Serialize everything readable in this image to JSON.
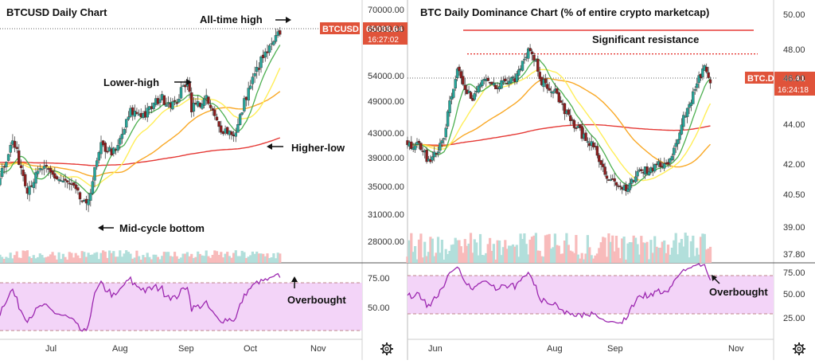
{
  "colors": {
    "up": "#26a69a",
    "down": "#8d1c1c",
    "ma_fast": "#4caf50",
    "ma_mid": "#ffee58",
    "ma_slow": "#f9a825",
    "ma_long": "#e53935",
    "rsi_line": "#9c27b0",
    "rsi_band": "#f3d4f8",
    "resistance": "#e53935",
    "badge": "#e0533a",
    "vol_up": "#b2dfdb",
    "vol_down": "#f8bbbb"
  },
  "chart_data": [
    {
      "type": "candlestick",
      "title": "BTCUSD Daily Chart",
      "symbol_badge": "BTCUSD",
      "last_price_label": "65088.64",
      "countdown": "16:27:02",
      "x_ticks": [
        "Jul",
        "Aug",
        "Sep",
        "Oct",
        "Nov"
      ],
      "y_ticks": [
        "70000.00",
        "60000.00",
        "54000.00",
        "49000.00",
        "43000.00",
        "39000.00",
        "35000.00",
        "31000.00",
        "28000.00"
      ],
      "y_scale": "log",
      "ylim": [
        26000,
        71000
      ],
      "rsi_ticks": [
        "75.00",
        "50.00"
      ],
      "rsi_range": [
        30,
        70
      ],
      "annotations": [
        "All-time high",
        "Lower-high",
        "Higher-low",
        "Mid-cycle bottom",
        "Overbought"
      ],
      "close_path": [
        [
          "2021-06-01",
          36500
        ],
        [
          "2021-06-08",
          33500
        ],
        [
          "2021-06-15",
          40000
        ],
        [
          "2021-06-22",
          32500
        ],
        [
          "2021-06-29",
          35500
        ],
        [
          "2021-07-06",
          34000
        ],
        [
          "2021-07-13",
          32800
        ],
        [
          "2021-07-20",
          29800
        ],
        [
          "2021-07-27",
          39000
        ],
        [
          "2021-08-03",
          38000
        ],
        [
          "2021-08-10",
          45500
        ],
        [
          "2021-08-17",
          45000
        ],
        [
          "2021-08-24",
          48500
        ],
        [
          "2021-08-31",
          47000
        ],
        [
          "2021-09-06",
          52500
        ],
        [
          "2021-09-08",
          46500
        ],
        [
          "2021-09-15",
          48000
        ],
        [
          "2021-09-21",
          42500
        ],
        [
          "2021-09-29",
          41300
        ],
        [
          "2021-10-04",
          49000
        ],
        [
          "2021-10-11",
          57000
        ],
        [
          "2021-10-17",
          61500
        ],
        [
          "2021-10-20",
          65000
        ]
      ]
    },
    {
      "type": "candlestick",
      "title": "BTC Daily Dominance Chart (% of entire crypto marketcap)",
      "symbol_badge": "BTC.D",
      "last_price_label": "46.41",
      "countdown": "16:24:18",
      "x_ticks": [
        "Jun",
        "Aug",
        "Sep",
        "Nov"
      ],
      "y_ticks": [
        "50.00",
        "48.00",
        "46.00",
        "44.00",
        "42.00",
        "40.50",
        "39.00",
        "37.80"
      ],
      "ylim": [
        37.0,
        50.5
      ],
      "rsi_ticks": [
        "75.00",
        "50.00",
        "25.00"
      ],
      "rsi_range": [
        30,
        70
      ],
      "annotations": [
        "Significant resistance",
        "Overbought"
      ],
      "resistance_level": 48.1,
      "close_path": [
        [
          "2021-05-20",
          43.0
        ],
        [
          "2021-05-27",
          42.0
        ],
        [
          "2021-06-03",
          43.5
        ],
        [
          "2021-06-10",
          47.5
        ],
        [
          "2021-06-17",
          45.5
        ],
        [
          "2021-06-24",
          46.8
        ],
        [
          "2021-07-01",
          46.2
        ],
        [
          "2021-07-10",
          46.8
        ],
        [
          "2021-07-18",
          48.5
        ],
        [
          "2021-07-24",
          46.5
        ],
        [
          "2021-08-01",
          45.8
        ],
        [
          "2021-08-10",
          44.0
        ],
        [
          "2021-08-20",
          43.0
        ],
        [
          "2021-08-28",
          41.0
        ],
        [
          "2021-09-06",
          40.6
        ],
        [
          "2021-09-14",
          41.5
        ],
        [
          "2021-09-22",
          41.8
        ],
        [
          "2021-09-29",
          42.0
        ],
        [
          "2021-10-06",
          44.5
        ],
        [
          "2021-10-12",
          46.2
        ],
        [
          "2021-10-17",
          47.6
        ],
        [
          "2021-10-20",
          46.4
        ]
      ]
    }
  ]
}
